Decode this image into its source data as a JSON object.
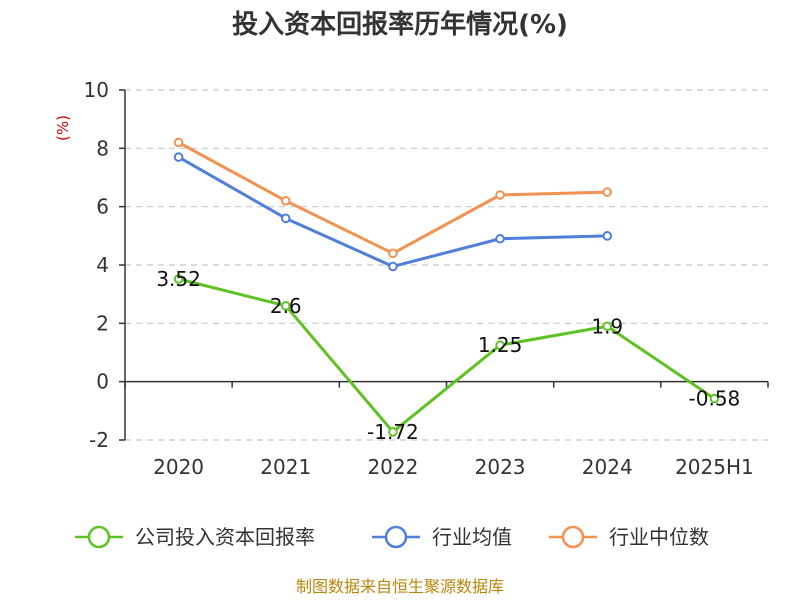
{
  "chart_data": {
    "type": "line",
    "title": "投入资本回报率历年情况(%)",
    "ylabel": "(%)",
    "categories": [
      "2020",
      "2021",
      "2022",
      "2023",
      "2024",
      "2025H1"
    ],
    "ylim": [
      -2,
      10
    ],
    "yticks": [
      -2,
      0,
      2,
      4,
      6,
      8,
      10
    ],
    "grid": true,
    "legend_position": "bottom",
    "series": [
      {
        "name": "公司投入资本回报率",
        "color": "#5ec322",
        "values": [
          3.52,
          2.6,
          -1.72,
          1.25,
          1.9,
          -0.58
        ],
        "labels": [
          "3.52",
          "2.6",
          "-1.72",
          "1.25",
          "1.9",
          "-0.58"
        ]
      },
      {
        "name": "行业均值",
        "color": "#4f7fd8",
        "values": [
          7.7,
          5.6,
          3.95,
          4.9,
          5.0,
          null
        ]
      },
      {
        "name": "行业中位数",
        "color": "#f39150",
        "values": [
          8.2,
          6.2,
          4.4,
          6.4,
          6.5,
          null
        ]
      }
    ]
  },
  "footer": {
    "source": "制图数据来自恒生聚源数据库"
  }
}
